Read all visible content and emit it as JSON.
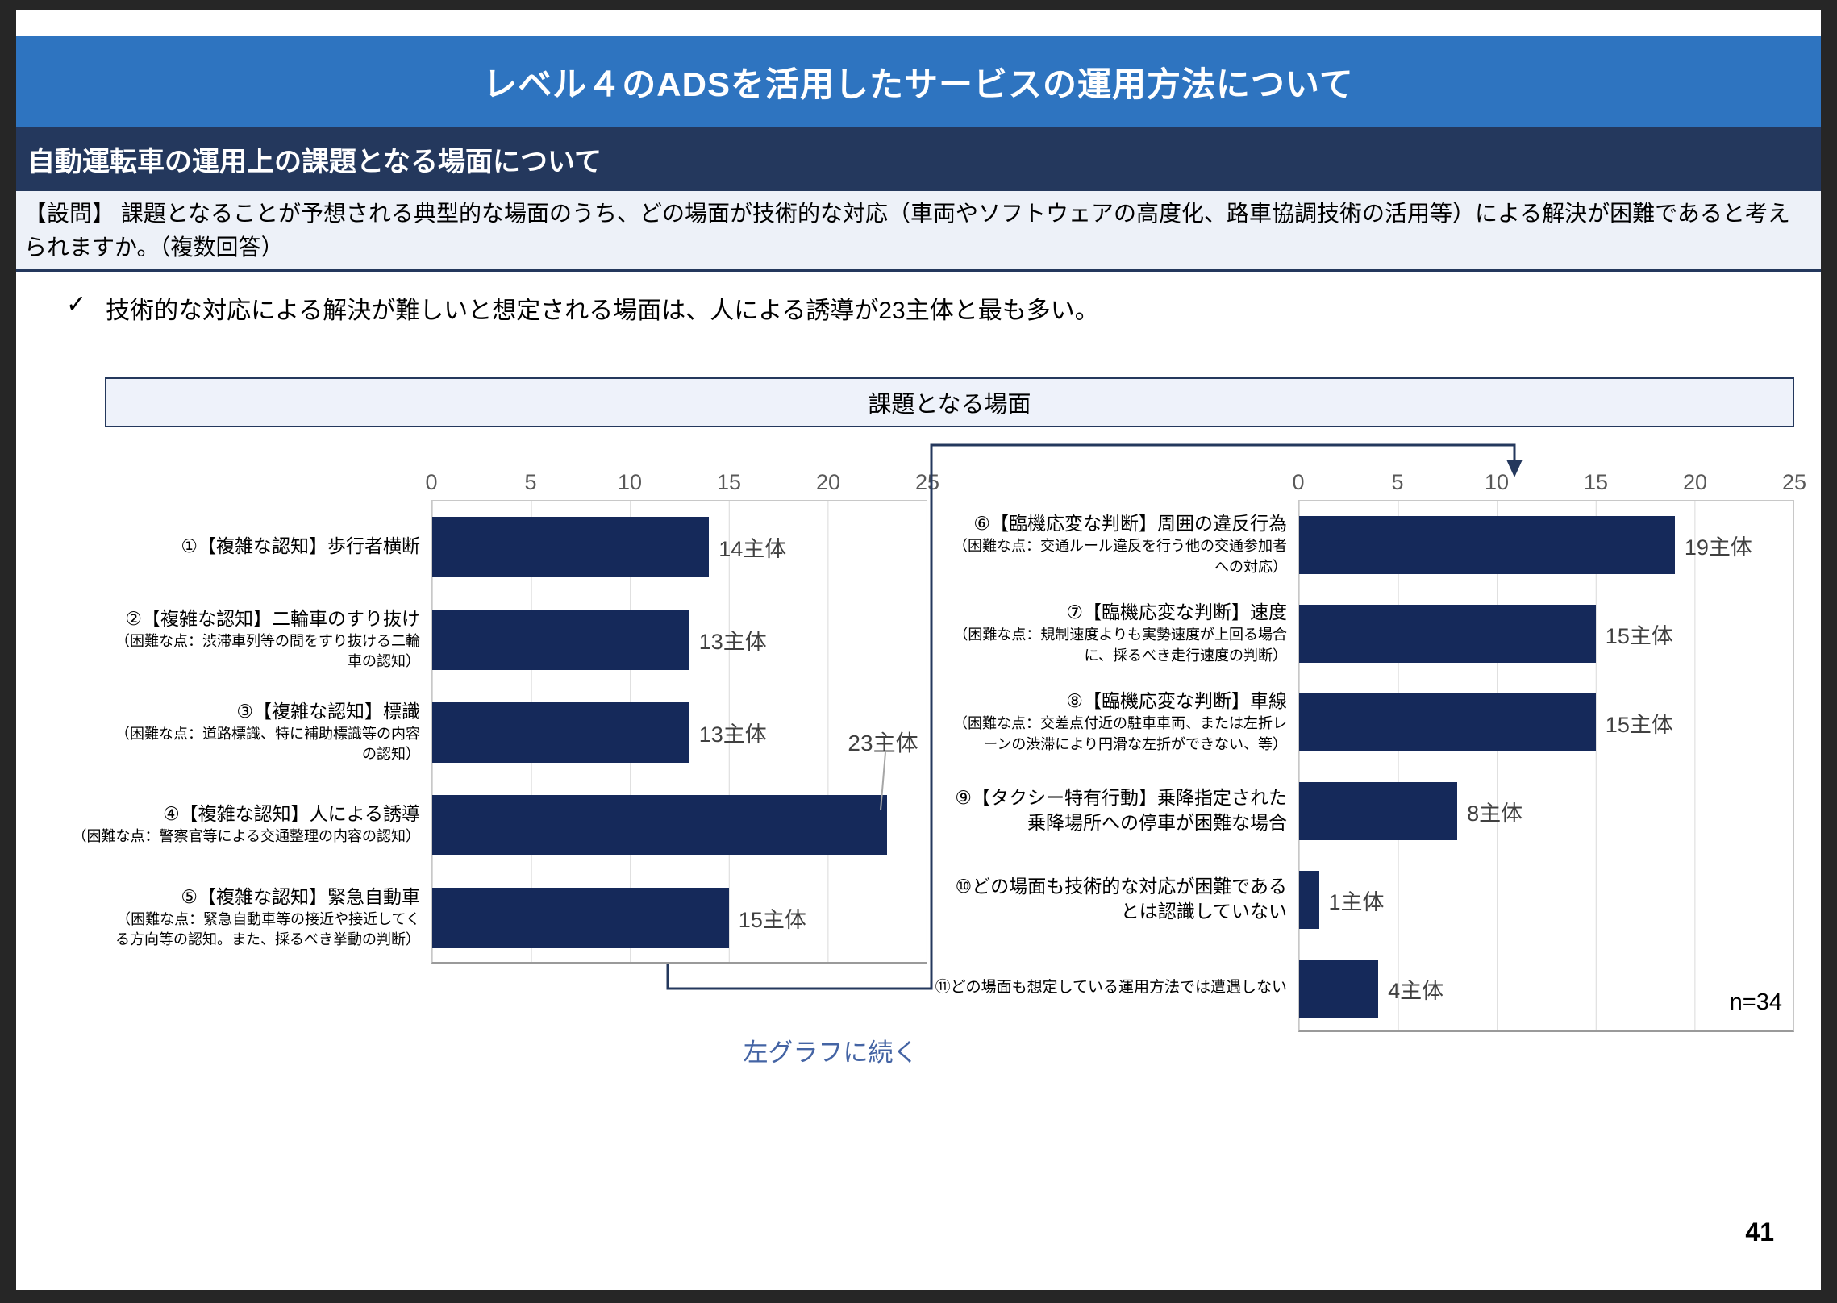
{
  "header": {
    "title": "レベル４のADSを活用したサービスの運用方法について"
  },
  "section": {
    "title": "自動運転車の運用上の課題となる場面について"
  },
  "question": {
    "text": "【設問】 課題となることが予想される典型的な場面のうち、どの場面が技術的な対応（車両やソフトウェアの高度化、路車協調技術の活用等）による解決が困難であると考えられますか。（複数回答）"
  },
  "summary": {
    "check": "✓",
    "text": "技術的な対応による解決が難しいと想定される場面は、人による誘導が23主体と最も多い。"
  },
  "chart_box": {
    "title": "課題となる場面",
    "continue_label": "左グラフに続く",
    "sample_size": "n=34"
  },
  "page": {
    "number": "41"
  },
  "colors": {
    "banner_blue": "#2e74c0",
    "section_navy": "#24385d",
    "bar_navy": "#15295a",
    "panel_light": "#edf1f8",
    "grid_gray": "#d9d9d9",
    "axis_text_gray": "#595959",
    "value_text_gray": "#404040",
    "continue_blue": "#4464a4"
  },
  "chart_data": [
    {
      "type": "bar",
      "orientation": "horizontal",
      "title": "課題となる場面（左グラフ）",
      "xlim": [
        0,
        25
      ],
      "ticks": [
        0,
        5,
        10,
        15,
        20,
        25
      ],
      "unit": "主体",
      "grid": true,
      "categories": [
        {
          "main": "①【複雑な認知】歩行者横断",
          "note": ""
        },
        {
          "main": "②【複雑な認知】二輪車のすり抜け",
          "note": "（困難な点：渋滞車列等の間をすり抜ける二輪車の認知）"
        },
        {
          "main": "③【複雑な認知】標識",
          "note": "（困難な点：道路標識、特に補助標識等の内容の認知）"
        },
        {
          "main": "④【複雑な認知】人による誘導",
          "note": "（困難な点：警察官等による交通整理の内容の認知）",
          "nowrap": true
        },
        {
          "main": "⑤【複雑な認知】緊急自動車",
          "note": "（困難な点：緊急自動車等の接近や接近してくる方向等の認知。また、採るべき挙動の判断）"
        }
      ],
      "values": [
        14,
        13,
        13,
        23,
        15
      ],
      "labels": [
        "14主体",
        "13主体",
        "13主体",
        "23主体",
        "15主体"
      ],
      "callout_index": 3
    },
    {
      "type": "bar",
      "orientation": "horizontal",
      "title": "課題となる場面（右グラフ）",
      "xlim": [
        0,
        25
      ],
      "ticks": [
        0,
        5,
        10,
        15,
        20,
        25
      ],
      "unit": "主体",
      "grid": true,
      "categories": [
        {
          "main": "⑥【臨機応変な判断】周囲の違反行為",
          "note": "（困難な点：交通ルール違反を行う他の交通参加者への対応）"
        },
        {
          "main": "⑦【臨機応変な判断】速度",
          "note": "（困難な点：規制速度よりも実勢速度が上回る場合に、採るべき走行速度の判断）"
        },
        {
          "main": "⑧【臨機応変な判断】車線",
          "note": "（困難な点：交差点付近の駐車車両、または左折レーンの渋滞により円滑な左折ができない、等）"
        },
        {
          "main": "⑨【タクシー特有行動】乗降指定された乗降場所への停車が困難な場合",
          "note": ""
        },
        {
          "main": "⑩どの場面も技術的な対応が困難であるとは認識していない",
          "note": ""
        },
        {
          "main": "⑪どの場面も想定している運用方法では遭遇しない",
          "note": "",
          "small": true
        }
      ],
      "values": [
        19,
        15,
        15,
        8,
        1,
        4
      ],
      "labels": [
        "19主体",
        "15主体",
        "15主体",
        "8主体",
        "1主体",
        "4主体"
      ],
      "callout_index": -1
    }
  ]
}
